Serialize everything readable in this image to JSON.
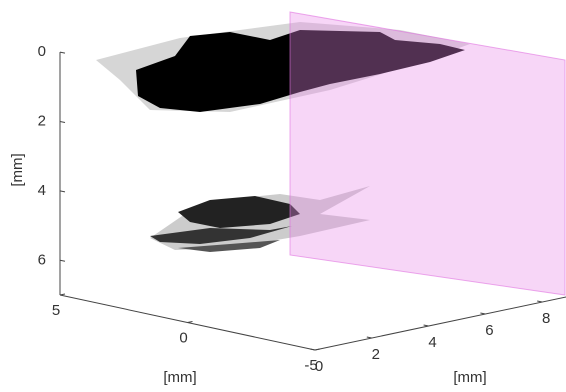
{
  "chart_data": {
    "type": "volume",
    "xlabel": "[mm]",
    "ylabel": "[mm]",
    "zlabel": "[mm]",
    "xlim": [
      0,
      9
    ],
    "xticks": [
      0,
      2,
      4,
      6,
      8
    ],
    "ylim": [
      -5,
      5
    ],
    "yticks": [
      -5,
      0,
      5
    ],
    "zlim": [
      0,
      7
    ],
    "zticks": [
      0,
      2,
      4,
      6
    ],
    "zreverse": true
  }
}
